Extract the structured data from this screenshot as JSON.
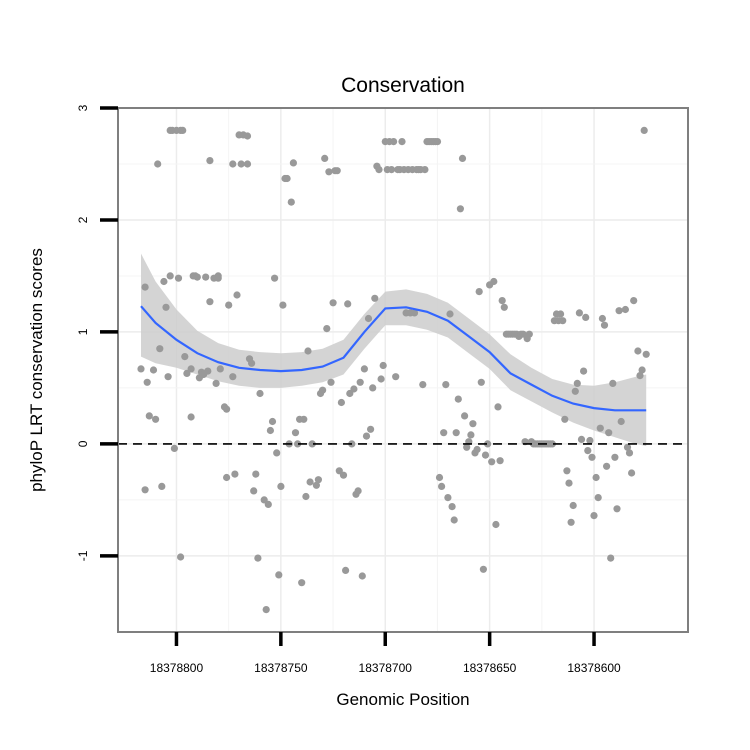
{
  "chart_data": {
    "type": "scatter",
    "title": "Conservation",
    "xlabel": "Genomic Position",
    "ylabel": "phyloP LRT conservation scores",
    "x_reversed": true,
    "xlim": [
      18378828,
      18378555
    ],
    "ylim": [
      -1.68,
      3.0
    ],
    "x_ticks": [
      18378800,
      18378750,
      18378700,
      18378650,
      18378600
    ],
    "x_tick_labels": [
      "18378800",
      "18378750",
      "18378700",
      "18378650",
      "18378600"
    ],
    "y_ticks": [
      -1,
      0,
      1,
      2,
      3
    ],
    "y_tick_labels": [
      "-1",
      "0",
      "1",
      "2",
      "3"
    ],
    "grid": true,
    "reference_line": {
      "y": 0,
      "style": "dashed"
    },
    "point_color": "#999999",
    "smooth_color": "#3366ff",
    "band_color": "#cccccc",
    "points": [
      [
        18378817,
        0.67
      ],
      [
        18378815,
        1.4
      ],
      [
        18378815,
        -0.41
      ],
      [
        18378814,
        0.55
      ],
      [
        18378813,
        0.25
      ],
      [
        18378811,
        0.66
      ],
      [
        18378810,
        0.22
      ],
      [
        18378809,
        2.5
      ],
      [
        18378808,
        0.85
      ],
      [
        18378807,
        -0.38
      ],
      [
        18378806,
        1.45
      ],
      [
        18378805,
        1.22
      ],
      [
        18378804,
        0.6
      ],
      [
        18378803,
        2.8
      ],
      [
        18378803,
        1.5
      ],
      [
        18378802,
        2.8
      ],
      [
        18378801,
        -0.04
      ],
      [
        18378800,
        2.8
      ],
      [
        18378799,
        1.48
      ],
      [
        18378798,
        -1.01
      ],
      [
        18378798,
        2.8
      ],
      [
        18378797,
        2.8
      ],
      [
        18378796,
        0.78
      ],
      [
        18378795,
        0.63
      ],
      [
        18378793,
        0.24
      ],
      [
        18378793,
        0.67
      ],
      [
        18378792,
        1.5
      ],
      [
        18378791,
        1.5
      ],
      [
        18378790,
        1.49
      ],
      [
        18378789,
        0.59
      ],
      [
        18378788,
        0.64
      ],
      [
        18378787,
        0.62
      ],
      [
        18378786,
        1.49
      ],
      [
        18378785,
        0.65
      ],
      [
        18378784,
        1.27
      ],
      [
        18378784,
        2.53
      ],
      [
        18378782,
        1.48
      ],
      [
        18378781,
        0.54
      ],
      [
        18378780,
        1.5
      ],
      [
        18378780,
        1.48
      ],
      [
        18378779,
        0.67
      ],
      [
        18378777,
        0.33
      ],
      [
        18378776,
        -0.3
      ],
      [
        18378776,
        0.31
      ],
      [
        18378775,
        1.24
      ],
      [
        18378773,
        2.5
      ],
      [
        18378773,
        0.6
      ],
      [
        18378772,
        -0.27
      ],
      [
        18378771,
        1.33
      ],
      [
        18378770,
        2.76
      ],
      [
        18378769,
        2.5
      ],
      [
        18378768,
        2.76
      ],
      [
        18378766,
        2.5
      ],
      [
        18378766,
        2.75
      ],
      [
        18378765,
        0.76
      ],
      [
        18378764,
        0.72
      ],
      [
        18378763,
        -0.42
      ],
      [
        18378762,
        -0.27
      ],
      [
        18378761,
        -1.02
      ],
      [
        18378760,
        0.45
      ],
      [
        18378758,
        -0.5
      ],
      [
        18378757,
        -1.48
      ],
      [
        18378756,
        -0.54
      ],
      [
        18378755,
        0.12
      ],
      [
        18378754,
        0.2
      ],
      [
        18378753,
        1.48
      ],
      [
        18378752,
        -0.08
      ],
      [
        18378751,
        -1.17
      ],
      [
        18378750,
        -0.38
      ],
      [
        18378749,
        1.24
      ],
      [
        18378748,
        2.37
      ],
      [
        18378747,
        2.37
      ],
      [
        18378746,
        0.0
      ],
      [
        18378745,
        2.16
      ],
      [
        18378744,
        2.51
      ],
      [
        18378743,
        0.1
      ],
      [
        18378742,
        0.0
      ],
      [
        18378741,
        0.22
      ],
      [
        18378740,
        -1.24
      ],
      [
        18378739,
        0.22
      ],
      [
        18378738,
        -0.47
      ],
      [
        18378737,
        0.83
      ],
      [
        18378736,
        -0.34
      ],
      [
        18378735,
        0.0
      ],
      [
        18378733,
        -0.37
      ],
      [
        18378732,
        -0.32
      ],
      [
        18378731,
        0.45
      ],
      [
        18378730,
        0.48
      ],
      [
        18378729,
        2.55
      ],
      [
        18378728,
        1.03
      ],
      [
        18378727,
        2.43
      ],
      [
        18378726,
        0.55
      ],
      [
        18378725,
        1.26
      ],
      [
        18378724,
        2.44
      ],
      [
        18378723,
        2.44
      ],
      [
        18378722,
        -0.24
      ],
      [
        18378721,
        0.37
      ],
      [
        18378720,
        -0.28
      ],
      [
        18378719,
        -1.13
      ],
      [
        18378718,
        1.25
      ],
      [
        18378717,
        0.45
      ],
      [
        18378716,
        0.0
      ],
      [
        18378715,
        0.49
      ],
      [
        18378714,
        -0.45
      ],
      [
        18378713,
        -0.42
      ],
      [
        18378712,
        0.55
      ],
      [
        18378711,
        -1.18
      ],
      [
        18378710,
        0.67
      ],
      [
        18378709,
        0.07
      ],
      [
        18378708,
        1.12
      ],
      [
        18378707,
        0.13
      ],
      [
        18378706,
        0.5
      ],
      [
        18378705,
        1.3
      ],
      [
        18378704,
        2.48
      ],
      [
        18378703,
        2.45
      ],
      [
        18378702,
        0.58
      ],
      [
        18378701,
        0.7
      ],
      [
        18378700,
        2.7
      ],
      [
        18378699,
        2.45
      ],
      [
        18378698,
        2.7
      ],
      [
        18378697,
        2.45
      ],
      [
        18378696,
        2.7
      ],
      [
        18378695,
        0.6
      ],
      [
        18378694,
        2.45
      ],
      [
        18378693,
        2.45
      ],
      [
        18378692,
        2.7
      ],
      [
        18378691,
        2.45
      ],
      [
        18378690,
        1.17
      ],
      [
        18378689,
        2.45
      ],
      [
        18378688,
        1.17
      ],
      [
        18378687,
        2.45
      ],
      [
        18378686,
        1.17
      ],
      [
        18378685,
        2.45
      ],
      [
        18378684,
        2.45
      ],
      [
        18378683,
        2.45
      ],
      [
        18378682,
        0.53
      ],
      [
        18378681,
        2.45
      ],
      [
        18378680,
        2.7
      ],
      [
        18378679,
        2.7
      ],
      [
        18378678,
        2.7
      ],
      [
        18378677,
        2.7
      ],
      [
        18378676,
        2.7
      ],
      [
        18378675,
        2.7
      ],
      [
        18378674,
        -0.3
      ],
      [
        18378673,
        -0.38
      ],
      [
        18378672,
        0.1
      ],
      [
        18378671,
        0.53
      ],
      [
        18378670,
        -0.48
      ],
      [
        18378669,
        1.16
      ],
      [
        18378668,
        -0.56
      ],
      [
        18378667,
        -0.68
      ],
      [
        18378666,
        0.1
      ],
      [
        18378665,
        0.4
      ],
      [
        18378664,
        2.1
      ],
      [
        18378663,
        2.55
      ],
      [
        18378662,
        0.25
      ],
      [
        18378661,
        -0.03
      ],
      [
        18378660,
        0.02
      ],
      [
        18378659,
        0.08
      ],
      [
        18378658,
        0.18
      ],
      [
        18378657,
        -0.08
      ],
      [
        18378656,
        -0.05
      ],
      [
        18378655,
        1.36
      ],
      [
        18378654,
        0.55
      ],
      [
        18378653,
        -1.12
      ],
      [
        18378652,
        -0.1
      ],
      [
        18378651,
        0.0
      ],
      [
        18378650,
        1.42
      ],
      [
        18378649,
        -0.16
      ],
      [
        18378648,
        1.45
      ],
      [
        18378647,
        -0.72
      ],
      [
        18378646,
        0.33
      ],
      [
        18378645,
        -0.15
      ],
      [
        18378644,
        1.28
      ],
      [
        18378643,
        1.22
      ],
      [
        18378642,
        0.98
      ],
      [
        18378641,
        0.98
      ],
      [
        18378640,
        0.98
      ],
      [
        18378639,
        0.98
      ],
      [
        18378638,
        0.98
      ],
      [
        18378637,
        0.98
      ],
      [
        18378636,
        0.96
      ],
      [
        18378635,
        0.98
      ],
      [
        18378634,
        0.98
      ],
      [
        18378633,
        0.02
      ],
      [
        18378632,
        0.94
      ],
      [
        18378631,
        0.98
      ],
      [
        18378630,
        0.02
      ],
      [
        18378629,
        0.0
      ],
      [
        18378628,
        0.0
      ],
      [
        18378627,
        0.0
      ],
      [
        18378626,
        0.0
      ],
      [
        18378625,
        0.0
      ],
      [
        18378624,
        0.0
      ],
      [
        18378623,
        0.0
      ],
      [
        18378622,
        0.0
      ],
      [
        18378621,
        0.0
      ],
      [
        18378620,
        0.0
      ],
      [
        18378619,
        1.1
      ],
      [
        18378618,
        1.16
      ],
      [
        18378617,
        1.1
      ],
      [
        18378616,
        1.16
      ],
      [
        18378615,
        1.1
      ],
      [
        18378614,
        0.22
      ],
      [
        18378613,
        -0.24
      ],
      [
        18378612,
        -0.35
      ],
      [
        18378611,
        -0.7
      ],
      [
        18378610,
        -0.55
      ],
      [
        18378609,
        0.47
      ],
      [
        18378608,
        0.54
      ],
      [
        18378607,
        1.17
      ],
      [
        18378606,
        0.04
      ],
      [
        18378605,
        0.65
      ],
      [
        18378604,
        1.13
      ],
      [
        18378603,
        -0.06
      ],
      [
        18378602,
        0.03
      ],
      [
        18378601,
        -0.12
      ],
      [
        18378600,
        -0.64
      ],
      [
        18378599,
        -0.3
      ],
      [
        18378598,
        -0.48
      ],
      [
        18378597,
        0.14
      ],
      [
        18378596,
        1.12
      ],
      [
        18378595,
        1.06
      ],
      [
        18378594,
        -0.2
      ],
      [
        18378593,
        0.1
      ],
      [
        18378592,
        -1.02
      ],
      [
        18378591,
        0.54
      ],
      [
        18378590,
        -0.12
      ],
      [
        18378589,
        -0.58
      ],
      [
        18378588,
        1.19
      ],
      [
        18378587,
        0.2
      ],
      [
        18378585,
        1.2
      ],
      [
        18378584,
        -0.03
      ],
      [
        18378583,
        -0.08
      ],
      [
        18378582,
        -0.26
      ],
      [
        18378581,
        1.28
      ],
      [
        18378579,
        0.83
      ],
      [
        18378578,
        0.61
      ],
      [
        18378577,
        0.66
      ],
      [
        18378576,
        2.8
      ],
      [
        18378575,
        0.8
      ]
    ],
    "smooth_x": [
      18378817,
      18378810,
      18378800,
      18378790,
      18378780,
      18378770,
      18378760,
      18378750,
      18378740,
      18378730,
      18378720,
      18378710,
      18378700,
      18378690,
      18378680,
      18378670,
      18378660,
      18378650,
      18378640,
      18378630,
      18378620,
      18378610,
      18378600,
      18378590,
      18378580,
      18378575
    ],
    "smooth_y": [
      1.23,
      1.08,
      0.93,
      0.81,
      0.73,
      0.68,
      0.66,
      0.65,
      0.66,
      0.69,
      0.77,
      1.0,
      1.21,
      1.22,
      1.18,
      1.1,
      0.96,
      0.82,
      0.63,
      0.53,
      0.43,
      0.36,
      0.32,
      0.3,
      0.3,
      0.3
    ],
    "band_lower": [
      0.78,
      0.72,
      0.68,
      0.62,
      0.56,
      0.52,
      0.5,
      0.5,
      0.52,
      0.55,
      0.62,
      0.85,
      1.06,
      1.06,
      1.02,
      0.95,
      0.81,
      0.67,
      0.48,
      0.38,
      0.28,
      0.19,
      0.12,
      0.06,
      0.0,
      -0.02
    ],
    "band_upper": [
      1.7,
      1.45,
      1.2,
      1.01,
      0.9,
      0.84,
      0.82,
      0.81,
      0.82,
      0.85,
      0.93,
      1.16,
      1.36,
      1.38,
      1.34,
      1.26,
      1.12,
      0.98,
      0.8,
      0.68,
      0.58,
      0.53,
      0.52,
      0.55,
      0.6,
      0.62
    ]
  }
}
